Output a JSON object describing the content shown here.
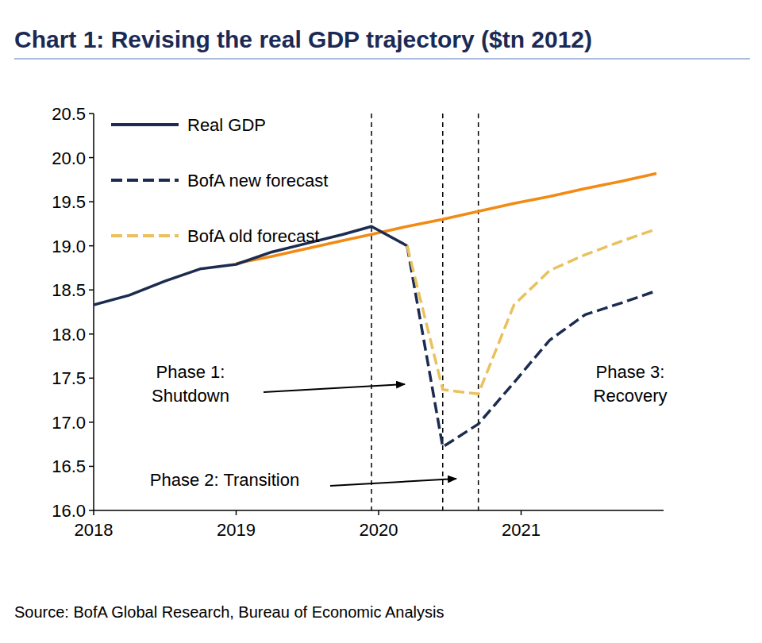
{
  "chart_data": {
    "type": "line",
    "title": "Chart 1: Revising the real GDP trajectory ($tn 2012)",
    "source": "Source: BofA Global Research, Bureau of Economic Analysis",
    "x": [
      2018,
      2018.25,
      2018.5,
      2018.75,
      2019,
      2019.25,
      2019.5,
      2019.75,
      2019.95,
      2020.2,
      2020.45,
      2020.7,
      2020.95,
      2021.2,
      2021.45,
      2021.7,
      2021.95
    ],
    "xlim": [
      2018,
      2022
    ],
    "xticks": [
      2018,
      2019,
      2020,
      2021
    ],
    "ylim": [
      16,
      20.5
    ],
    "yticks": [
      {
        "value": 16,
        "label": "16.0"
      },
      16.5,
      {
        "value": 17,
        "label": "17.0"
      },
      17.5,
      {
        "value": 18,
        "label": "18.0"
      },
      18.5,
      {
        "value": 19,
        "label": "19.0"
      },
      19.5,
      {
        "value": 20,
        "label": "20.0"
      },
      20.5
    ],
    "grid": false,
    "legend": "top-left",
    "series": [
      {
        "name": "Real GDP",
        "color": "#1c2b50",
        "line_style": "solid",
        "values": [
          18.33,
          18.44,
          18.6,
          18.74,
          18.79,
          18.93,
          19.03,
          19.13,
          19.22,
          19.0,
          null,
          null,
          null,
          null,
          null,
          null,
          null
        ]
      },
      {
        "name": "BofA new forecast",
        "color": "#1c2b50",
        "line_style": "dashed",
        "values": [
          null,
          null,
          null,
          null,
          null,
          null,
          null,
          null,
          null,
          19.0,
          16.72,
          16.98,
          17.45,
          17.93,
          18.22,
          18.35,
          18.49
        ]
      },
      {
        "name": "BofA old forecast",
        "color": "#e9c25e",
        "line_style": "dashed",
        "values": [
          null,
          null,
          null,
          null,
          null,
          null,
          null,
          null,
          null,
          19.0,
          17.37,
          17.32,
          18.33,
          18.72,
          18.9,
          19.05,
          19.19
        ]
      },
      {
        "color": "#f28a14",
        "line_style": "solid",
        "values": [
          null,
          null,
          null,
          null,
          18.8,
          18.88,
          18.97,
          19.06,
          19.13,
          19.22,
          19.3,
          19.39,
          19.48,
          19.56,
          19.65,
          19.73,
          19.82
        ]
      }
    ],
    "phase_lines": [
      2019.95,
      2020.45,
      2020.7
    ],
    "annotations": [
      {
        "text": [
          "Phase 1:",
          "Shutdown"
        ]
      },
      {
        "text": [
          "Phase 2: Transition"
        ]
      },
      {
        "text": [
          "Phase 3:",
          "Recovery"
        ]
      }
    ]
  }
}
